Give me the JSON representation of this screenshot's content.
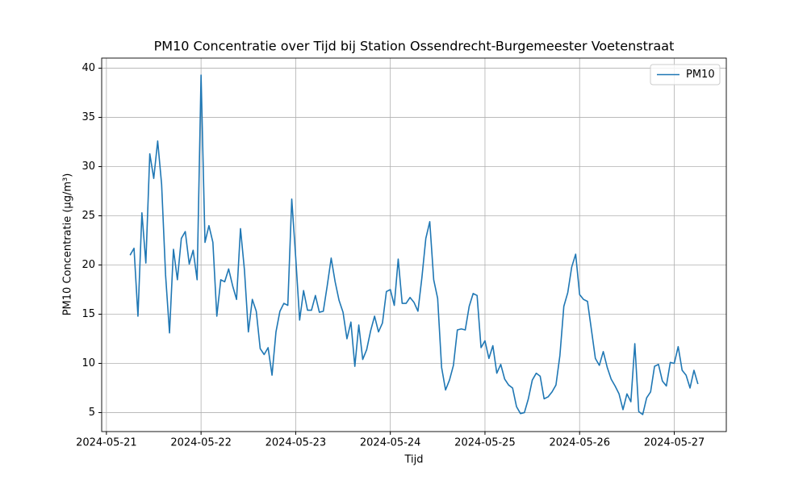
{
  "chart_data": {
    "type": "line",
    "title": "PM10 Concentratie over Tijd bij Station Ossendrecht-Burgemeester Voetenstraat",
    "xlabel": "Tijd",
    "ylabel": "PM10 Concentratie (µg/m³)",
    "x": [
      "2024-05-21T06:00",
      "2024-05-21T07:00",
      "2024-05-21T08:00",
      "2024-05-21T09:00",
      "2024-05-21T10:00",
      "2024-05-21T11:00",
      "2024-05-21T12:00",
      "2024-05-21T13:00",
      "2024-05-21T14:00",
      "2024-05-21T15:00",
      "2024-05-21T16:00",
      "2024-05-21T17:00",
      "2024-05-21T18:00",
      "2024-05-21T19:00",
      "2024-05-21T20:00",
      "2024-05-21T21:00",
      "2024-05-21T22:00",
      "2024-05-21T23:00",
      "2024-05-22T00:00",
      "2024-05-22T01:00",
      "2024-05-22T02:00",
      "2024-05-22T03:00",
      "2024-05-22T04:00",
      "2024-05-22T05:00",
      "2024-05-22T06:00",
      "2024-05-22T07:00",
      "2024-05-22T08:00",
      "2024-05-22T09:00",
      "2024-05-22T10:00",
      "2024-05-22T11:00",
      "2024-05-22T12:00",
      "2024-05-22T13:00",
      "2024-05-22T14:00",
      "2024-05-22T15:00",
      "2024-05-22T16:00",
      "2024-05-22T17:00",
      "2024-05-22T18:00",
      "2024-05-22T19:00",
      "2024-05-22T20:00",
      "2024-05-22T21:00",
      "2024-05-22T22:00",
      "2024-05-22T23:00",
      "2024-05-23T00:00",
      "2024-05-23T01:00",
      "2024-05-23T02:00",
      "2024-05-23T03:00",
      "2024-05-23T04:00",
      "2024-05-23T05:00",
      "2024-05-23T06:00",
      "2024-05-23T07:00",
      "2024-05-23T08:00",
      "2024-05-23T09:00",
      "2024-05-23T10:00",
      "2024-05-23T11:00",
      "2024-05-23T12:00",
      "2024-05-23T13:00",
      "2024-05-23T14:00",
      "2024-05-23T15:00",
      "2024-05-23T16:00",
      "2024-05-23T17:00",
      "2024-05-23T18:00",
      "2024-05-23T19:00",
      "2024-05-23T20:00",
      "2024-05-23T21:00",
      "2024-05-23T22:00",
      "2024-05-23T23:00",
      "2024-05-24T00:00",
      "2024-05-24T01:00",
      "2024-05-24T02:00",
      "2024-05-24T03:00",
      "2024-05-24T04:00",
      "2024-05-24T05:00",
      "2024-05-24T06:00",
      "2024-05-24T07:00",
      "2024-05-24T08:00",
      "2024-05-24T09:00",
      "2024-05-24T10:00",
      "2024-05-24T11:00",
      "2024-05-24T12:00",
      "2024-05-24T13:00",
      "2024-05-24T14:00",
      "2024-05-24T15:00",
      "2024-05-24T16:00",
      "2024-05-24T17:00",
      "2024-05-24T18:00",
      "2024-05-24T19:00",
      "2024-05-24T20:00",
      "2024-05-24T21:00",
      "2024-05-24T22:00",
      "2024-05-24T23:00",
      "2024-05-25T00:00",
      "2024-05-25T01:00",
      "2024-05-25T02:00",
      "2024-05-25T03:00",
      "2024-05-25T04:00",
      "2024-05-25T05:00",
      "2024-05-25T06:00",
      "2024-05-25T07:00",
      "2024-05-25T08:00",
      "2024-05-25T09:00",
      "2024-05-25T10:00",
      "2024-05-25T11:00",
      "2024-05-25T12:00",
      "2024-05-25T13:00",
      "2024-05-25T14:00",
      "2024-05-25T15:00",
      "2024-05-25T16:00",
      "2024-05-25T17:00",
      "2024-05-25T18:00",
      "2024-05-25T19:00",
      "2024-05-25T20:00",
      "2024-05-25T21:00",
      "2024-05-25T22:00",
      "2024-05-25T23:00",
      "2024-05-26T00:00",
      "2024-05-26T01:00",
      "2024-05-26T02:00",
      "2024-05-26T03:00",
      "2024-05-26T04:00",
      "2024-05-26T05:00",
      "2024-05-26T06:00",
      "2024-05-26T07:00",
      "2024-05-26T08:00",
      "2024-05-26T09:00",
      "2024-05-26T10:00",
      "2024-05-26T11:00",
      "2024-05-26T12:00",
      "2024-05-26T13:00",
      "2024-05-26T14:00",
      "2024-05-26T15:00",
      "2024-05-26T16:00",
      "2024-05-26T17:00",
      "2024-05-26T18:00",
      "2024-05-26T19:00",
      "2024-05-26T20:00",
      "2024-05-26T21:00",
      "2024-05-26T22:00",
      "2024-05-26T23:00",
      "2024-05-27T00:00",
      "2024-05-27T01:00",
      "2024-05-27T02:00",
      "2024-05-27T03:00",
      "2024-05-27T04:00",
      "2024-05-27T05:00",
      "2024-05-27T06:00"
    ],
    "series": [
      {
        "name": "PM10",
        "color": "#1f77b4",
        "values": [
          21.0,
          21.7,
          14.8,
          25.3,
          20.2,
          31.3,
          28.8,
          32.6,
          28.2,
          19.0,
          13.1,
          21.6,
          18.5,
          22.7,
          23.4,
          20.1,
          21.5,
          18.5,
          39.3,
          22.3,
          24.0,
          22.3,
          14.8,
          18.5,
          18.3,
          19.6,
          17.9,
          16.5,
          23.7,
          19.5,
          13.2,
          16.5,
          15.3,
          11.5,
          10.9,
          11.6,
          8.8,
          13.2,
          15.3,
          16.1,
          15.9,
          26.7,
          20.8,
          14.4,
          17.4,
          15.4,
          15.4,
          16.9,
          15.2,
          15.3,
          17.9,
          20.7,
          18.3,
          16.4,
          15.2,
          12.5,
          14.2,
          9.7,
          13.9,
          10.4,
          11.4,
          13.3,
          14.8,
          13.2,
          14.1,
          17.3,
          17.5,
          15.9,
          20.6,
          16.1,
          16.1,
          16.7,
          16.2,
          15.3,
          18.7,
          22.7,
          24.4,
          18.5,
          16.6,
          9.6,
          7.3,
          8.3,
          9.8,
          13.4,
          13.5,
          13.4,
          15.8,
          17.1,
          16.9,
          11.6,
          12.3,
          10.5,
          11.8,
          9.0,
          9.9,
          8.4,
          7.8,
          7.5,
          5.6,
          4.9,
          5.0,
          6.4,
          8.3,
          9.0,
          8.7,
          6.4,
          6.6,
          7.1,
          7.8,
          10.8,
          15.8,
          17.2,
          19.8,
          21.1,
          17.0,
          16.5,
          16.3,
          13.4,
          10.5,
          9.8,
          11.2,
          9.6,
          8.4,
          7.7,
          6.9,
          5.3,
          6.9,
          6.1,
          12.0,
          5.1,
          4.8,
          6.5,
          7.1,
          9.7,
          9.9,
          8.2,
          7.7,
          10.1,
          10.0,
          11.7,
          9.3,
          8.8,
          7.5,
          9.3,
          7.9
        ]
      }
    ],
    "xlim": [
      "2024-05-20T22:48",
      "2024-05-27T13:12"
    ],
    "xticks": [
      "2024-05-21",
      "2024-05-22",
      "2024-05-23",
      "2024-05-24",
      "2024-05-25",
      "2024-05-26",
      "2024-05-27"
    ],
    "ylim": [
      3.07,
      41.03
    ],
    "yticks": [
      5,
      10,
      15,
      20,
      25,
      30,
      35,
      40
    ],
    "grid": true,
    "legend": "upper right"
  }
}
